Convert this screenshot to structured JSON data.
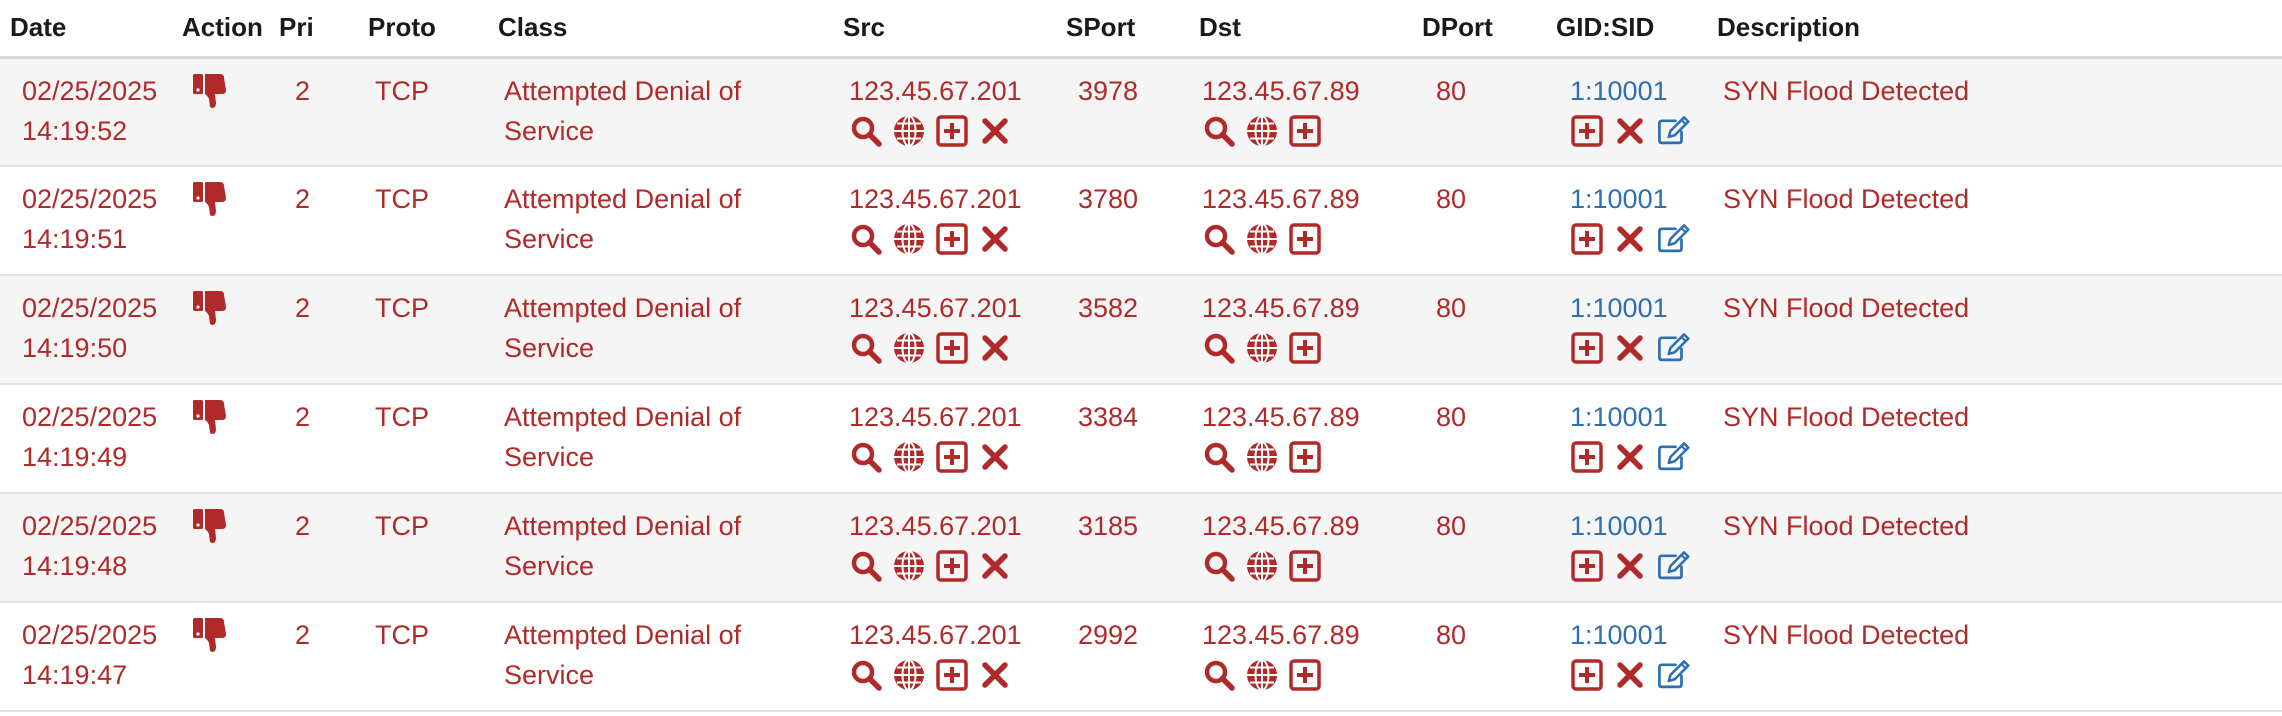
{
  "columns": {
    "date": "Date",
    "action": "Action",
    "pri": "Pri",
    "proto": "Proto",
    "class": "Class",
    "src": "Src",
    "sport": "SPort",
    "dst": "Dst",
    "dport": "DPort",
    "gidsid": "GID:SID",
    "description": "Description"
  },
  "colors": {
    "text_red": "#b02a2a",
    "link_blue": "#2e6fb0",
    "row_alt": "#f5f5f5"
  },
  "icons": {
    "action": "thumbs-down-icon",
    "src": [
      "search-icon",
      "globe-icon",
      "plus-square-icon",
      "close-icon"
    ],
    "dst": [
      "search-icon",
      "globe-icon",
      "plus-square-icon"
    ],
    "gidsid": [
      "plus-square-icon",
      "close-icon",
      "edit-icon"
    ]
  },
  "rows": [
    {
      "date": "02/25/2025",
      "time": "14:19:52",
      "pri": "2",
      "proto": "TCP",
      "class_line1": "Attempted Denial of",
      "class_line2": "Service",
      "src": "123.45.67.201",
      "sport": "3978",
      "dst": "123.45.67.89",
      "dport": "80",
      "gidsid": "1:10001",
      "description": "SYN Flood Detected"
    },
    {
      "date": "02/25/2025",
      "time": "14:19:51",
      "pri": "2",
      "proto": "TCP",
      "class_line1": "Attempted Denial of",
      "class_line2": "Service",
      "src": "123.45.67.201",
      "sport": "3780",
      "dst": "123.45.67.89",
      "dport": "80",
      "gidsid": "1:10001",
      "description": "SYN Flood Detected"
    },
    {
      "date": "02/25/2025",
      "time": "14:19:50",
      "pri": "2",
      "proto": "TCP",
      "class_line1": "Attempted Denial of",
      "class_line2": "Service",
      "src": "123.45.67.201",
      "sport": "3582",
      "dst": "123.45.67.89",
      "dport": "80",
      "gidsid": "1:10001",
      "description": "SYN Flood Detected"
    },
    {
      "date": "02/25/2025",
      "time": "14:19:49",
      "pri": "2",
      "proto": "TCP",
      "class_line1": "Attempted Denial of",
      "class_line2": "Service",
      "src": "123.45.67.201",
      "sport": "3384",
      "dst": "123.45.67.89",
      "dport": "80",
      "gidsid": "1:10001",
      "description": "SYN Flood Detected"
    },
    {
      "date": "02/25/2025",
      "time": "14:19:48",
      "pri": "2",
      "proto": "TCP",
      "class_line1": "Attempted Denial of",
      "class_line2": "Service",
      "src": "123.45.67.201",
      "sport": "3185",
      "dst": "123.45.67.89",
      "dport": "80",
      "gidsid": "1:10001",
      "description": "SYN Flood Detected"
    },
    {
      "date": "02/25/2025",
      "time": "14:19:47",
      "pri": "2",
      "proto": "TCP",
      "class_line1": "Attempted Denial of",
      "class_line2": "Service",
      "src": "123.45.67.201",
      "sport": "2992",
      "dst": "123.45.67.89",
      "dport": "80",
      "gidsid": "1:10001",
      "description": "SYN Flood Detected"
    }
  ]
}
